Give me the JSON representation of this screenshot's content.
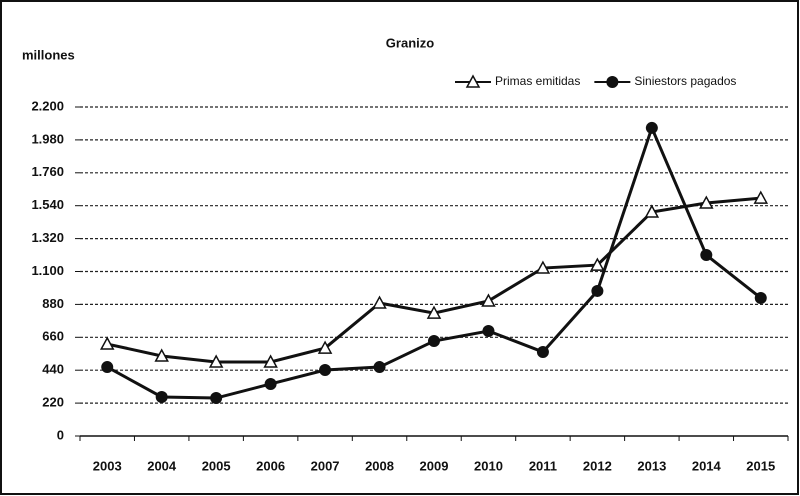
{
  "chart_data": {
    "type": "line",
    "title": "Granizo",
    "y_label": "millones",
    "categories": [
      "2003",
      "2004",
      "2005",
      "2006",
      "2007",
      "2008",
      "2009",
      "2010",
      "2011",
      "2012",
      "2013",
      "2014",
      "2015"
    ],
    "series": [
      {
        "name": "Primas emitidas",
        "color": "#111111",
        "marker": "triangle",
        "values": [
          615,
          535,
          495,
          495,
          588,
          889,
          822,
          903,
          1123,
          1143,
          1498,
          1558,
          1591
        ]
      },
      {
        "name": "Siniestors pagados",
        "color": "#111111",
        "marker": "circle",
        "values": [
          461,
          261,
          254,
          348,
          441,
          461,
          635,
          702,
          562,
          970,
          2060,
          1210,
          923
        ]
      }
    ],
    "ylim": [
      0,
      2200
    ],
    "yticks": [
      0,
      220,
      440,
      660,
      880,
      {
        "value": 1100,
        "label": "1.100"
      },
      {
        "value": 1320,
        "label": "1.320"
      },
      {
        "value": 1540,
        "label": "1.540"
      },
      {
        "value": 1760,
        "label": "1.760"
      },
      {
        "value": 1980,
        "label": "1.980"
      },
      {
        "value": 2200,
        "label": "2.200"
      }
    ],
    "grid": true,
    "legend": "top-right"
  }
}
